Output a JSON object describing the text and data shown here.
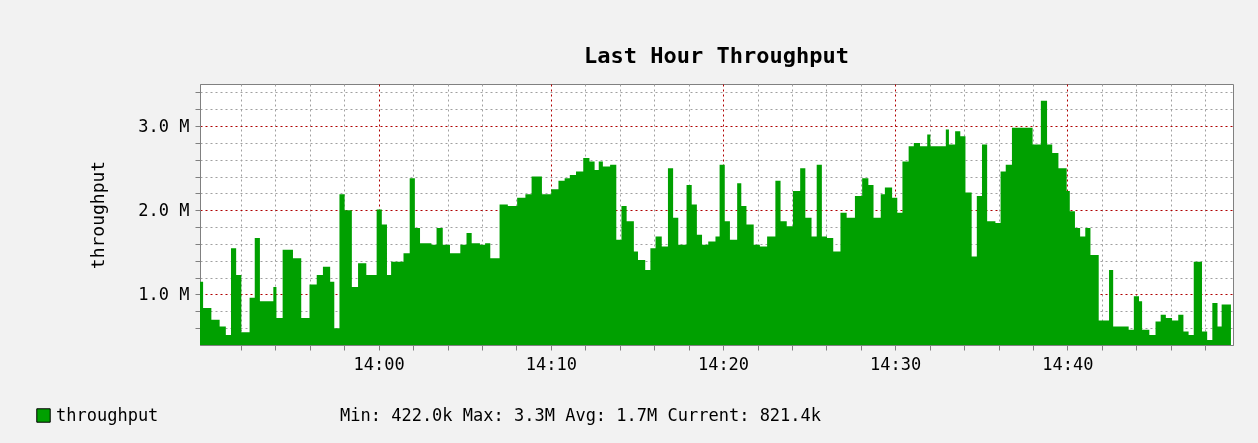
{
  "chart_data": {
    "type": "area",
    "title": "Last Hour Throughput",
    "ylabel": "throughput",
    "x": [
      13.827,
      13.83,
      13.838,
      13.846,
      13.852,
      13.857,
      13.862,
      13.867,
      13.875,
      13.88,
      13.885,
      13.898,
      13.901,
      13.907,
      13.917,
      13.925,
      13.933,
      13.94,
      13.946,
      13.953,
      13.957,
      13.962,
      13.967,
      13.974,
      13.98,
      13.988,
      13.998,
      14.003,
      14.008,
      14.012,
      14.024,
      14.03,
      14.035,
      14.04,
      14.051,
      14.056,
      14.062,
      14.069,
      14.079,
      14.085,
      14.09,
      14.098,
      14.103,
      14.108,
      14.117,
      14.125,
      14.134,
      14.142,
      14.148,
      14.158,
      14.167,
      14.174,
      14.18,
      14.185,
      14.191,
      14.198,
      14.204,
      14.209,
      14.213,
      14.217,
      14.224,
      14.23,
      14.235,
      14.24,
      14.247,
      14.251,
      14.258,
      14.263,
      14.268,
      14.274,
      14.28,
      14.285,
      14.29,
      14.298,
      14.303,
      14.308,
      14.313,
      14.319,
      14.326,
      14.33,
      14.335,
      14.34,
      14.347,
      14.351,
      14.356,
      14.363,
      14.369,
      14.376,
      14.384,
      14.389,
      14.395,
      14.401,
      14.408,
      14.413,
      14.419,
      14.424,
      14.429,
      14.434,
      14.44,
      14.447,
      14.453,
      14.461,
      14.468,
      14.474,
      14.479,
      14.486,
      14.49,
      14.497,
      14.502,
      14.507,
      14.513,
      14.518,
      14.524,
      14.531,
      14.534,
      14.549,
      14.552,
      14.558,
      14.563,
      14.568,
      14.574,
      14.579,
      14.584,
      14.589,
      14.597,
      14.602,
      14.607,
      14.613,
      14.624,
      14.633,
      14.641,
      14.647,
      14.652,
      14.658,
      14.666,
      14.669,
      14.674,
      14.679,
      14.684,
      14.689,
      14.697,
      14.707,
      14.711,
      14.726,
      14.731,
      14.736,
      14.739,
      14.746,
      14.752,
      14.757,
      14.762,
      14.768,
      14.774,
      14.779,
      14.784,
      14.789,
      14.797,
      14.802,
      14.807,
      14.812,
      14.816,
      14.825
    ],
    "series": [
      {
        "name": "throughput",
        "color": "#00a000",
        "values": [
          1.15,
          0.84,
          0.7,
          0.62,
          0.52,
          1.55,
          1.23,
          0.55,
          0.96,
          1.67,
          0.92,
          1.09,
          0.72,
          1.53,
          1.43,
          0.72,
          1.12,
          1.23,
          1.33,
          1.15,
          0.6,
          2.19,
          2.0,
          1.09,
          1.37,
          1.23,
          2.01,
          1.83,
          1.23,
          1.39,
          1.49,
          2.38,
          1.79,
          1.61,
          1.59,
          1.79,
          1.59,
          1.49,
          1.59,
          1.73,
          1.61,
          1.59,
          1.61,
          1.43,
          2.07,
          2.05,
          2.15,
          2.19,
          2.4,
          2.19,
          2.25,
          2.35,
          2.38,
          2.42,
          2.46,
          2.62,
          2.58,
          2.48,
          2.58,
          2.52,
          2.54,
          1.65,
          2.05,
          1.87,
          1.51,
          1.41,
          1.29,
          1.55,
          1.69,
          1.57,
          2.5,
          1.91,
          1.59,
          2.3,
          2.07,
          1.71,
          1.59,
          1.63,
          1.69,
          2.54,
          1.87,
          1.65,
          2.32,
          2.05,
          1.83,
          1.59,
          1.57,
          1.69,
          2.35,
          1.87,
          1.81,
          2.23,
          2.5,
          1.91,
          1.69,
          2.54,
          1.69,
          1.67,
          1.51,
          1.97,
          1.91,
          2.17,
          2.38,
          2.3,
          1.91,
          2.19,
          2.27,
          2.15,
          1.97,
          2.58,
          2.76,
          2.8,
          2.76,
          2.9,
          2.76,
          2.96,
          2.78,
          2.94,
          2.88,
          2.21,
          1.45,
          2.17,
          2.78,
          1.87,
          1.85,
          2.46,
          2.54,
          2.98,
          2.98,
          2.78,
          3.3,
          2.78,
          2.68,
          2.5,
          2.23,
          1.99,
          1.79,
          1.69,
          1.79,
          1.47,
          0.69,
          1.29,
          0.62,
          0.58,
          0.98,
          0.92,
          0.58,
          0.52,
          0.68,
          0.76,
          0.72,
          0.69,
          0.76,
          0.56,
          0.52,
          1.39,
          0.56,
          0.46,
          0.9,
          0.62,
          0.88,
          0.82
        ]
      }
    ],
    "xlim": [
      13.827,
      14.827
    ],
    "xticks": [
      {
        "value": 13.8667,
        "label": null
      },
      {
        "value": 13.9,
        "label": null
      },
      {
        "value": 13.9333,
        "label": null
      },
      {
        "value": 13.9667,
        "label": null
      },
      {
        "value": 14,
        "label": "14:00"
      },
      {
        "value": 14.0333,
        "label": null
      },
      {
        "value": 14.0667,
        "label": null
      },
      {
        "value": 14.1,
        "label": null
      },
      {
        "value": 14.1333,
        "label": null
      },
      {
        "value": 14.1667,
        "label": "14:10"
      },
      {
        "value": 14.2,
        "label": null
      },
      {
        "value": 14.2333,
        "label": null
      },
      {
        "value": 14.2667,
        "label": null
      },
      {
        "value": 14.3,
        "label": null
      },
      {
        "value": 14.3333,
        "label": "14:20"
      },
      {
        "value": 14.3667,
        "label": null
      },
      {
        "value": 14.4,
        "label": null
      },
      {
        "value": 14.4333,
        "label": null
      },
      {
        "value": 14.4667,
        "label": null
      },
      {
        "value": 14.5,
        "label": "14:30"
      },
      {
        "value": 14.5333,
        "label": null
      },
      {
        "value": 14.5667,
        "label": null
      },
      {
        "value": 14.6,
        "label": null
      },
      {
        "value": 14.6333,
        "label": null
      },
      {
        "value": 14.6667,
        "label": "14:40"
      },
      {
        "value": 14.7,
        "label": null
      },
      {
        "value": 14.7333,
        "label": null
      },
      {
        "value": 14.7667,
        "label": null
      },
      {
        "value": 14.8,
        "label": null
      }
    ],
    "ylim": [
      0.4,
      3.5
    ],
    "yticks": [
      {
        "value": 0.6,
        "label": null
      },
      {
        "value": 0.8,
        "label": null
      },
      {
        "value": 1,
        "label": "1.0 M"
      },
      {
        "value": 1.2,
        "label": null
      },
      {
        "value": 1.4,
        "label": null
      },
      {
        "value": 1.6,
        "label": null
      },
      {
        "value": 1.8,
        "label": null
      },
      {
        "value": 2,
        "label": "2.0 M"
      },
      {
        "value": 2.2,
        "label": null
      },
      {
        "value": 2.4,
        "label": null
      },
      {
        "value": 2.6,
        "label": null
      },
      {
        "value": 2.8,
        "label": null
      },
      {
        "value": 3,
        "label": "3.0 M"
      },
      {
        "value": 3.2,
        "label": null
      },
      {
        "value": 3.4,
        "label": null
      }
    ],
    "grid": true,
    "legend": "bottom",
    "annotations": [
      "Min: 422.0k  Max: 3.3M  Avg: 1.7M  Current: 821.4k"
    ]
  }
}
